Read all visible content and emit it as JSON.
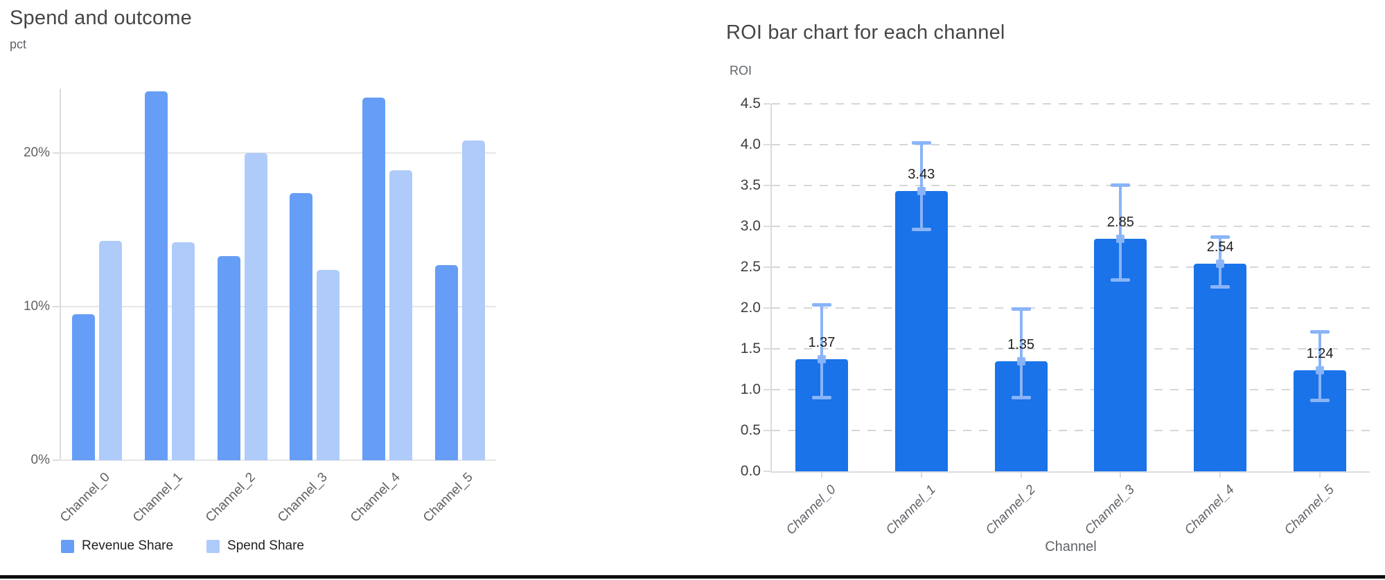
{
  "chart_data": [
    {
      "type": "bar",
      "title": "Spend and outcome",
      "unit_label": "pct",
      "categories": [
        "Channel_0",
        "Channel_1",
        "Channel_2",
        "Channel_3",
        "Channel_4",
        "Channel_5"
      ],
      "series": [
        {
          "name": "Revenue Share",
          "color": "#669df6",
          "values": [
            9.5,
            24.0,
            13.3,
            17.4,
            23.6,
            12.7
          ]
        },
        {
          "name": "Spend Share",
          "color": "#aecbfa",
          "values": [
            14.3,
            14.2,
            20.0,
            12.4,
            18.9,
            20.8
          ]
        }
      ],
      "y_ticks": [
        {
          "label": "0%",
          "value": 0
        },
        {
          "label": "10%",
          "value": 10
        },
        {
          "label": "20%",
          "value": 20
        }
      ],
      "ylim": [
        0,
        24.2
      ],
      "grid": "solid-horizontal",
      "legend_position": "bottom-left"
    },
    {
      "type": "bar",
      "title": "ROI bar chart for each channel",
      "ylabel": "ROI",
      "xlabel": "Channel",
      "categories": [
        "Channel_0",
        "Channel_1",
        "Channel_2",
        "Channel_3",
        "Channel_4",
        "Channel_5"
      ],
      "values": [
        1.37,
        3.43,
        1.35,
        2.85,
        2.54,
        1.24
      ],
      "data_labels": [
        "1.37",
        "3.43",
        "1.35",
        "2.85",
        "2.54",
        "1.24"
      ],
      "error_low": [
        0.89,
        2.95,
        0.89,
        2.33,
        2.25,
        0.86
      ],
      "error_high": [
        2.05,
        4.03,
        2.0,
        3.52,
        2.88,
        1.72
      ],
      "y_ticks": [
        {
          "label": "0.0",
          "value": 0.0
        },
        {
          "label": "0.5",
          "value": 0.5
        },
        {
          "label": "1.0",
          "value": 1.0
        },
        {
          "label": "1.5",
          "value": 1.5
        },
        {
          "label": "2.0",
          "value": 2.0
        },
        {
          "label": "2.5",
          "value": 2.5
        },
        {
          "label": "3.0",
          "value": 3.0
        },
        {
          "label": "3.5",
          "value": 3.5
        },
        {
          "label": "4.0",
          "value": 4.0
        },
        {
          "label": "4.5",
          "value": 4.5
        }
      ],
      "ylim": [
        0,
        4.5
      ],
      "bar_color": "#1a73e8",
      "error_color": "#8ab4f8",
      "grid": "dashed-horizontal",
      "legend_position": "none"
    }
  ]
}
